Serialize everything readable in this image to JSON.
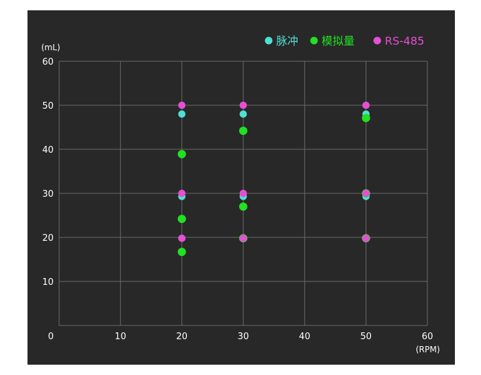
{
  "chart_data": {
    "type": "scatter",
    "title": "",
    "xlabel": "(RPM)",
    "ylabel": "(mL)",
    "xlim": [
      0,
      60
    ],
    "ylim": [
      0,
      60
    ],
    "x_ticks": [
      0,
      10,
      20,
      30,
      40,
      50,
      60
    ],
    "y_ticks": [
      10,
      20,
      30,
      40,
      50,
      60
    ],
    "grid": true,
    "legend_position": "top-right",
    "background": "#282828",
    "series": [
      {
        "name": "脉冲",
        "color": "#4fe0d0",
        "points": [
          {
            "x": 20,
            "y": 48
          },
          {
            "x": 20,
            "y": 29.3
          },
          {
            "x": 20,
            "y": 19.8
          },
          {
            "x": 30,
            "y": 48
          },
          {
            "x": 30,
            "y": 29.3
          },
          {
            "x": 30,
            "y": 19.8
          },
          {
            "x": 50,
            "y": 48
          },
          {
            "x": 50,
            "y": 29.3
          },
          {
            "x": 50,
            "y": 19.8
          }
        ]
      },
      {
        "name": "模拟量",
        "color": "#22e022",
        "points": [
          {
            "x": 20,
            "y": 38.9
          },
          {
            "x": 20,
            "y": 24.2
          },
          {
            "x": 20,
            "y": 16.7
          },
          {
            "x": 30,
            "y": 44.2
          },
          {
            "x": 30,
            "y": 27
          },
          {
            "x": 30,
            "y": 19.8
          },
          {
            "x": 50,
            "y": 47.1
          },
          {
            "x": 50,
            "y": 30
          },
          {
            "x": 50,
            "y": 19.8
          }
        ]
      },
      {
        "name": "RS-485",
        "color": "#e64fd4",
        "points": [
          {
            "x": 20,
            "y": 50
          },
          {
            "x": 20,
            "y": 30
          },
          {
            "x": 20,
            "y": 19.8
          },
          {
            "x": 30,
            "y": 50
          },
          {
            "x": 30,
            "y": 30
          },
          {
            "x": 30,
            "y": 19.8
          },
          {
            "x": 50,
            "y": 50
          },
          {
            "x": 50,
            "y": 30
          },
          {
            "x": 50,
            "y": 19.8
          }
        ]
      }
    ]
  }
}
